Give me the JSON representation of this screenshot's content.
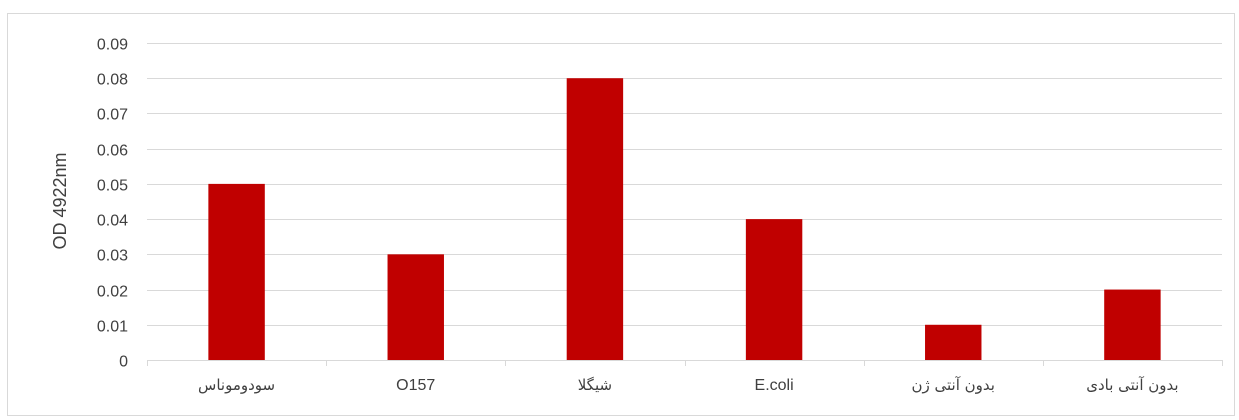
{
  "chart_data": {
    "type": "bar",
    "categories": [
      "سودوموناس",
      "O157",
      "شیگلا",
      "E.coli",
      "بدون آنتی ژن",
      "بدون آنتی بادی"
    ],
    "values": [
      0.05,
      0.03,
      0.08,
      0.04,
      0.01,
      0.02
    ],
    "title": "",
    "xlabel": "",
    "ylabel": "OD 4922nm",
    "ylim": [
      0,
      0.09
    ],
    "yticks": [
      "0",
      "0.01",
      "0.02",
      "0.03",
      "0.04",
      "0.05",
      "0.06",
      "0.07",
      "0.08",
      "0.09"
    ],
    "grid": true,
    "legend": "none",
    "bar_color": "#c00000",
    "grid_color": "#d9d9d9",
    "text_color": "#404040"
  }
}
